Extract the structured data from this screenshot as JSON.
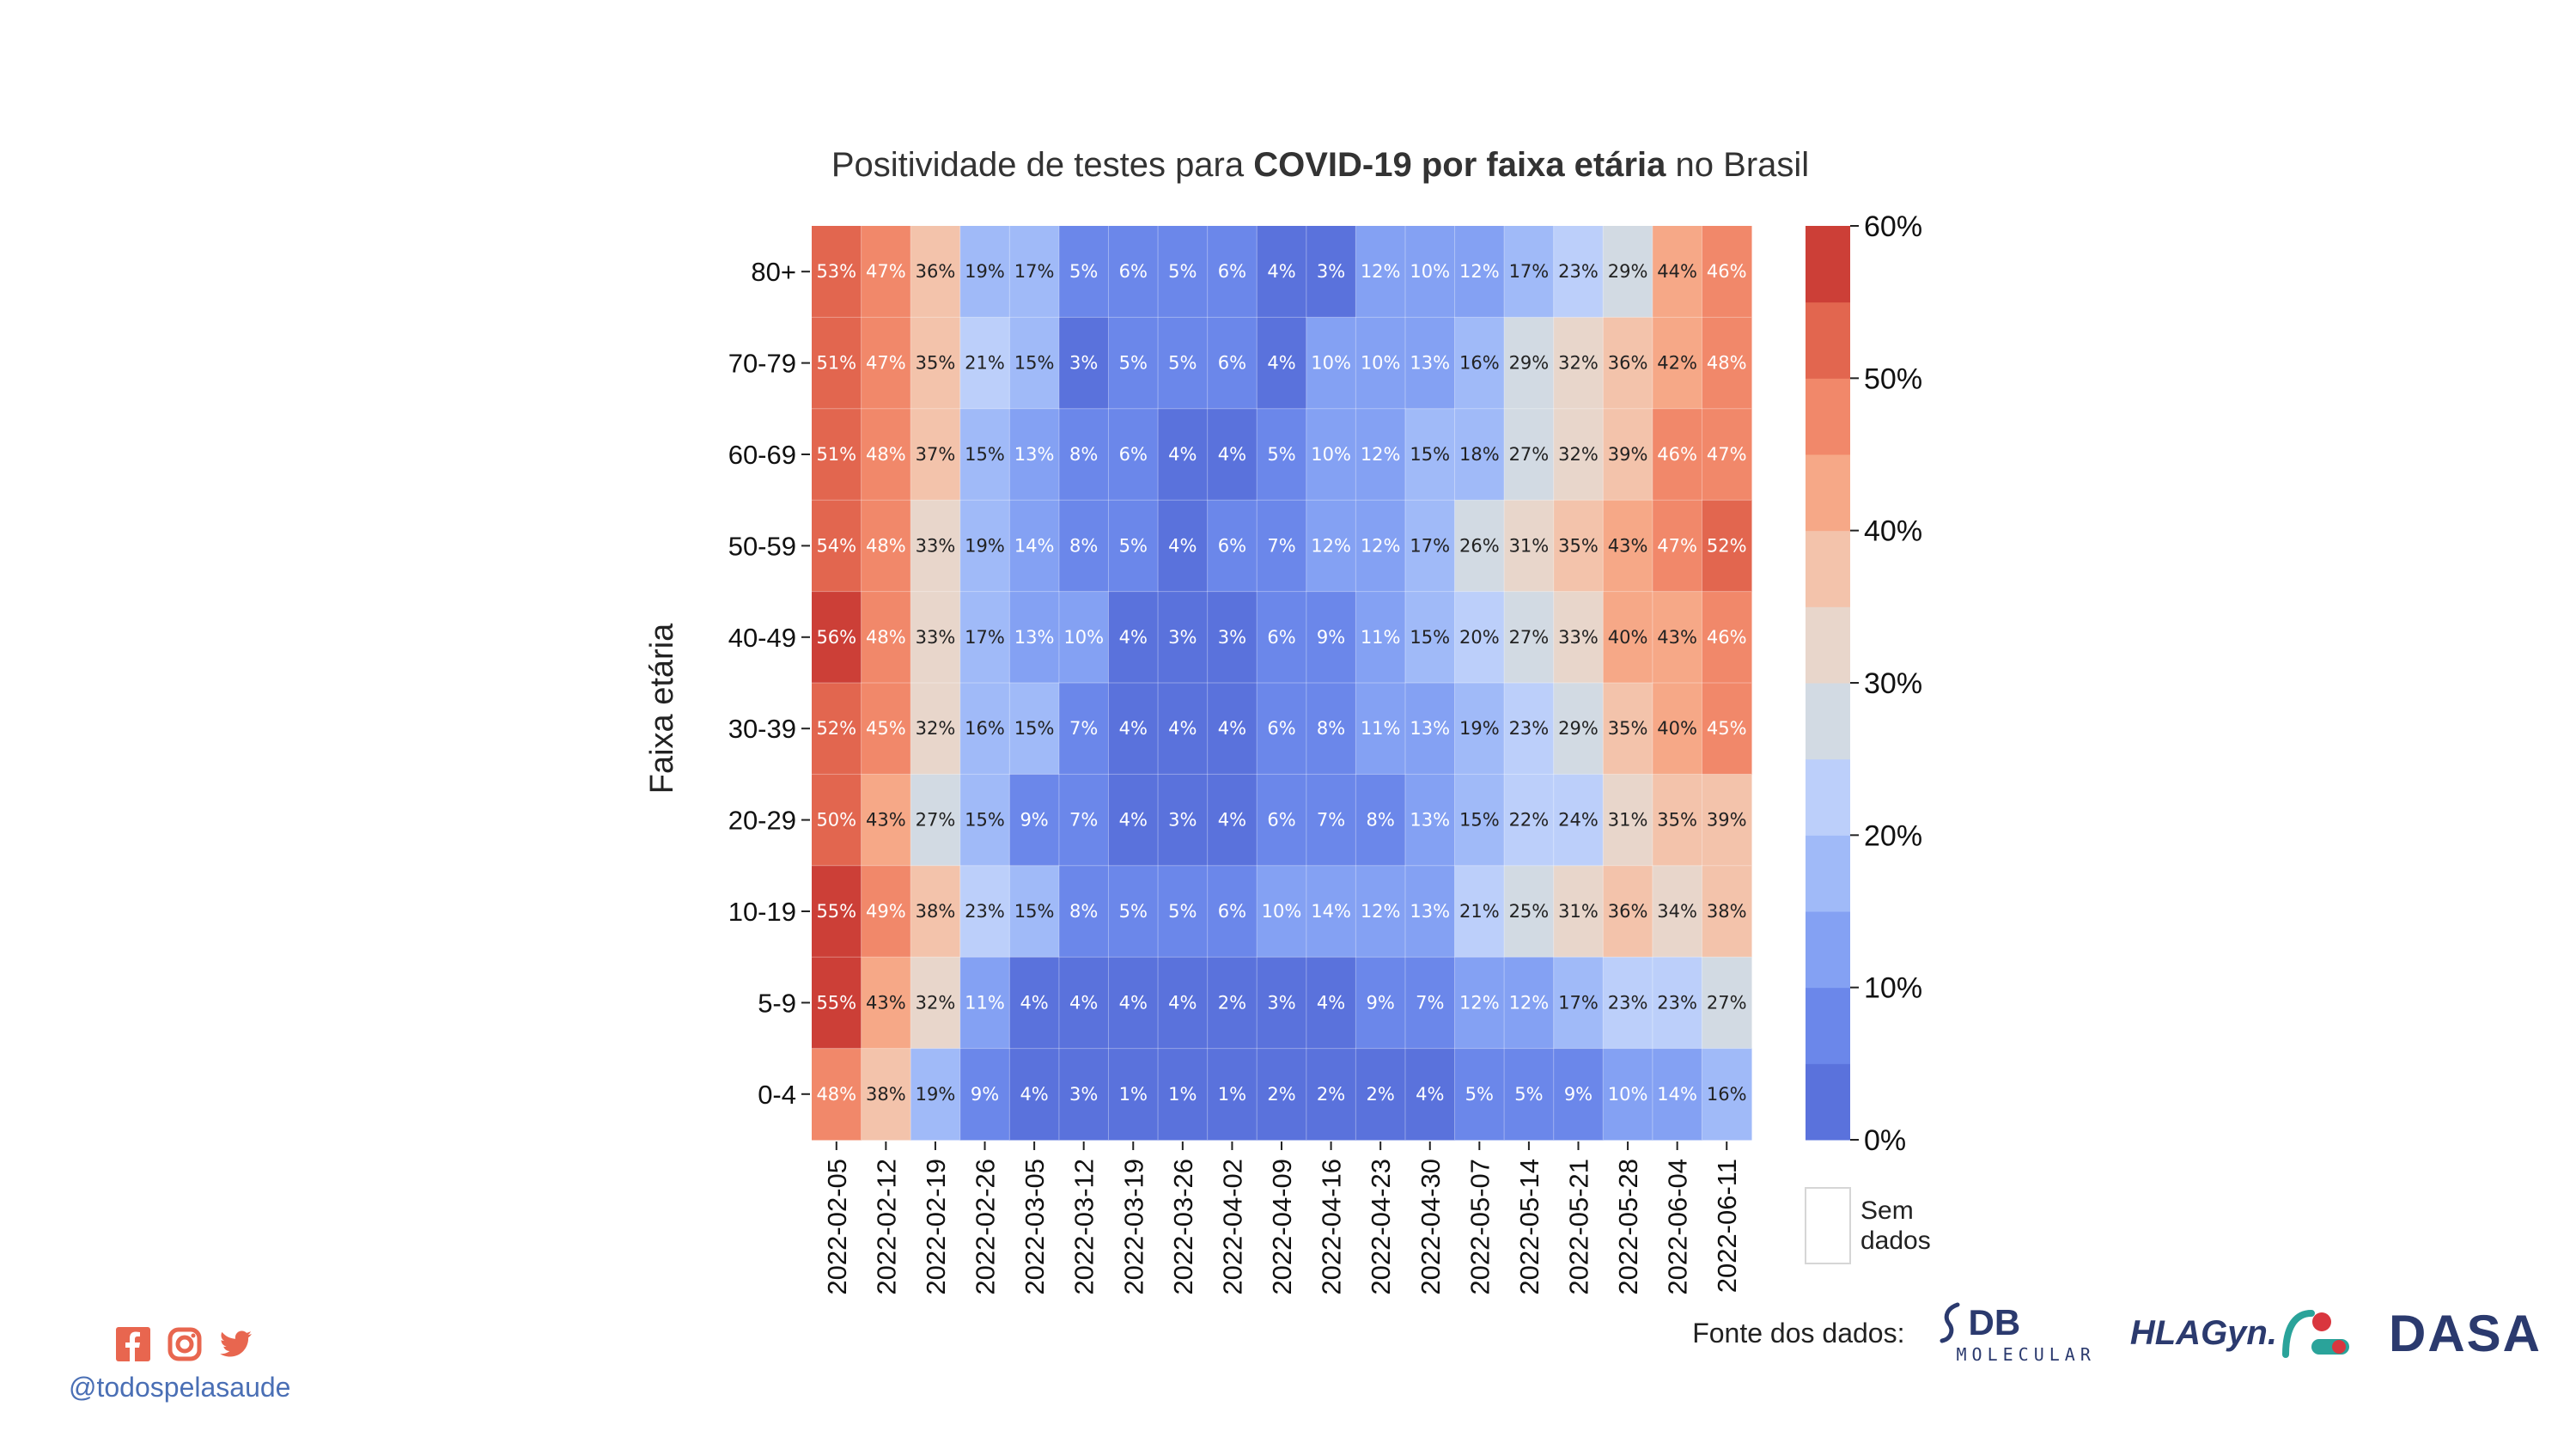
{
  "chart_data": {
    "type": "heatmap",
    "title_parts": [
      {
        "text": "Positividade de testes para ",
        "bold": false
      },
      {
        "text": "COVID-19 por faixa etária",
        "bold": true
      },
      {
        "text": " no Brasil",
        "bold": false
      }
    ],
    "ylabel": "Faixa etária",
    "xlabel": "",
    "x": [
      "2022-02-05",
      "2022-02-12",
      "2022-02-19",
      "2022-02-26",
      "2022-03-05",
      "2022-03-12",
      "2022-03-19",
      "2022-03-26",
      "2022-04-02",
      "2022-04-09",
      "2022-04-16",
      "2022-04-23",
      "2022-04-30",
      "2022-05-07",
      "2022-05-14",
      "2022-05-21",
      "2022-05-28",
      "2022-06-04",
      "2022-06-11"
    ],
    "y": [
      "80+",
      "70-79",
      "60-69",
      "50-59",
      "40-49",
      "30-39",
      "20-29",
      "10-19",
      "5-9",
      "0-4"
    ],
    "values": [
      [
        53,
        47,
        36,
        19,
        17,
        5,
        6,
        5,
        6,
        4,
        3,
        12,
        10,
        12,
        17,
        23,
        29,
        44,
        46
      ],
      [
        51,
        47,
        35,
        21,
        15,
        3,
        5,
        5,
        6,
        4,
        10,
        10,
        13,
        16,
        29,
        32,
        36,
        42,
        48
      ],
      [
        51,
        48,
        37,
        15,
        13,
        8,
        6,
        4,
        4,
        5,
        10,
        12,
        15,
        18,
        27,
        32,
        39,
        46,
        47
      ],
      [
        54,
        48,
        33,
        19,
        14,
        8,
        5,
        4,
        6,
        7,
        12,
        12,
        17,
        26,
        31,
        35,
        43,
        47,
        52
      ],
      [
        56,
        48,
        33,
        17,
        13,
        10,
        4,
        3,
        3,
        6,
        9,
        11,
        15,
        20,
        27,
        33,
        40,
        43,
        46
      ],
      [
        52,
        45,
        32,
        16,
        15,
        7,
        4,
        4,
        4,
        6,
        8,
        11,
        13,
        19,
        23,
        29,
        35,
        40,
        45
      ],
      [
        50,
        43,
        27,
        15,
        9,
        7,
        4,
        3,
        4,
        6,
        7,
        8,
        13,
        15,
        22,
        24,
        31,
        35,
        39
      ],
      [
        55,
        49,
        38,
        23,
        15,
        8,
        5,
        5,
        6,
        10,
        14,
        12,
        13,
        21,
        25,
        31,
        36,
        34,
        38
      ],
      [
        55,
        43,
        32,
        11,
        4,
        4,
        4,
        4,
        2,
        3,
        4,
        9,
        7,
        12,
        12,
        17,
        23,
        23,
        27
      ],
      [
        48,
        38,
        19,
        9,
        4,
        3,
        1,
        1,
        1,
        2,
        2,
        2,
        4,
        5,
        5,
        9,
        10,
        14,
        16
      ]
    ],
    "value_suffix": "%",
    "colorbar": {
      "range": [
        0,
        60
      ],
      "ticks": [
        "0%",
        "10%",
        "20%",
        "30%",
        "40%",
        "50%",
        "60%"
      ],
      "colors": [
        "#5a72dc",
        "#6b87ea",
        "#84a1f3",
        "#a0baf8",
        "#bccffa",
        "#d2dae3",
        "#e8d6cb",
        "#f3c3ab",
        "#f6a887",
        "#f1886a",
        "#e2664f",
        "#cc3f37"
      ]
    },
    "nodata_label": [
      "Sem",
      "dados"
    ]
  },
  "footer": {
    "social_handle": "@todospelasaude",
    "icons": [
      "facebook-icon",
      "instagram-icon",
      "twitter-icon"
    ],
    "icon_color": "#e8664f",
    "source_label": "Fonte dos dados:",
    "logos": {
      "db_main": "DB",
      "db_sub": "MOLECULAR",
      "hla": "HLAGyn.",
      "dasa": "DASA"
    }
  }
}
